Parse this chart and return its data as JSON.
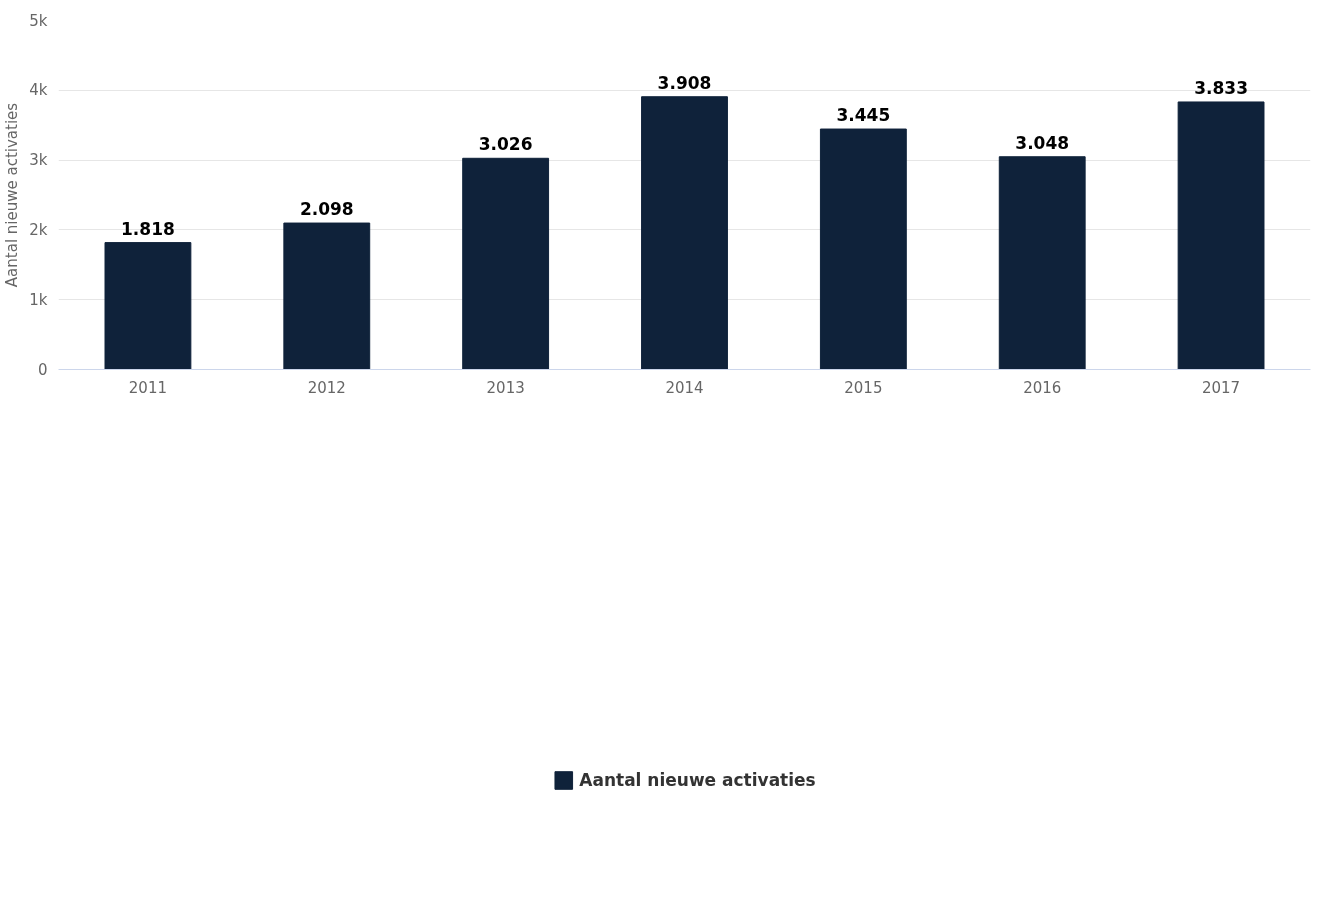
{
  "chart_data": {
    "type": "bar",
    "ylabel": "Aantal nieuwe activaties",
    "categories": [
      "2011",
      "2012",
      "2013",
      "2014",
      "2015",
      "2016",
      "2017"
    ],
    "series": [
      {
        "name": "Aantal nieuwe activaties",
        "color": "#0f223a",
        "values": [
          1818,
          2098,
          3026,
          3908,
          3445,
          3048,
          3833
        ],
        "value_labels": [
          "1.818",
          "2.098",
          "3.026",
          "3.908",
          "3.445",
          "3.048",
          "3.833"
        ]
      }
    ],
    "ylim": [
      0,
      5000
    ],
    "yticks": [
      {
        "value": 0,
        "label": "0"
      },
      {
        "value": 1000,
        "label": "1k"
      },
      {
        "value": 2000,
        "label": "2k"
      },
      {
        "value": 3000,
        "label": "3k"
      },
      {
        "value": 4000,
        "label": "4k"
      },
      {
        "value": 5000,
        "label": "5k"
      }
    ],
    "grid": "y",
    "legend": "bottom"
  }
}
